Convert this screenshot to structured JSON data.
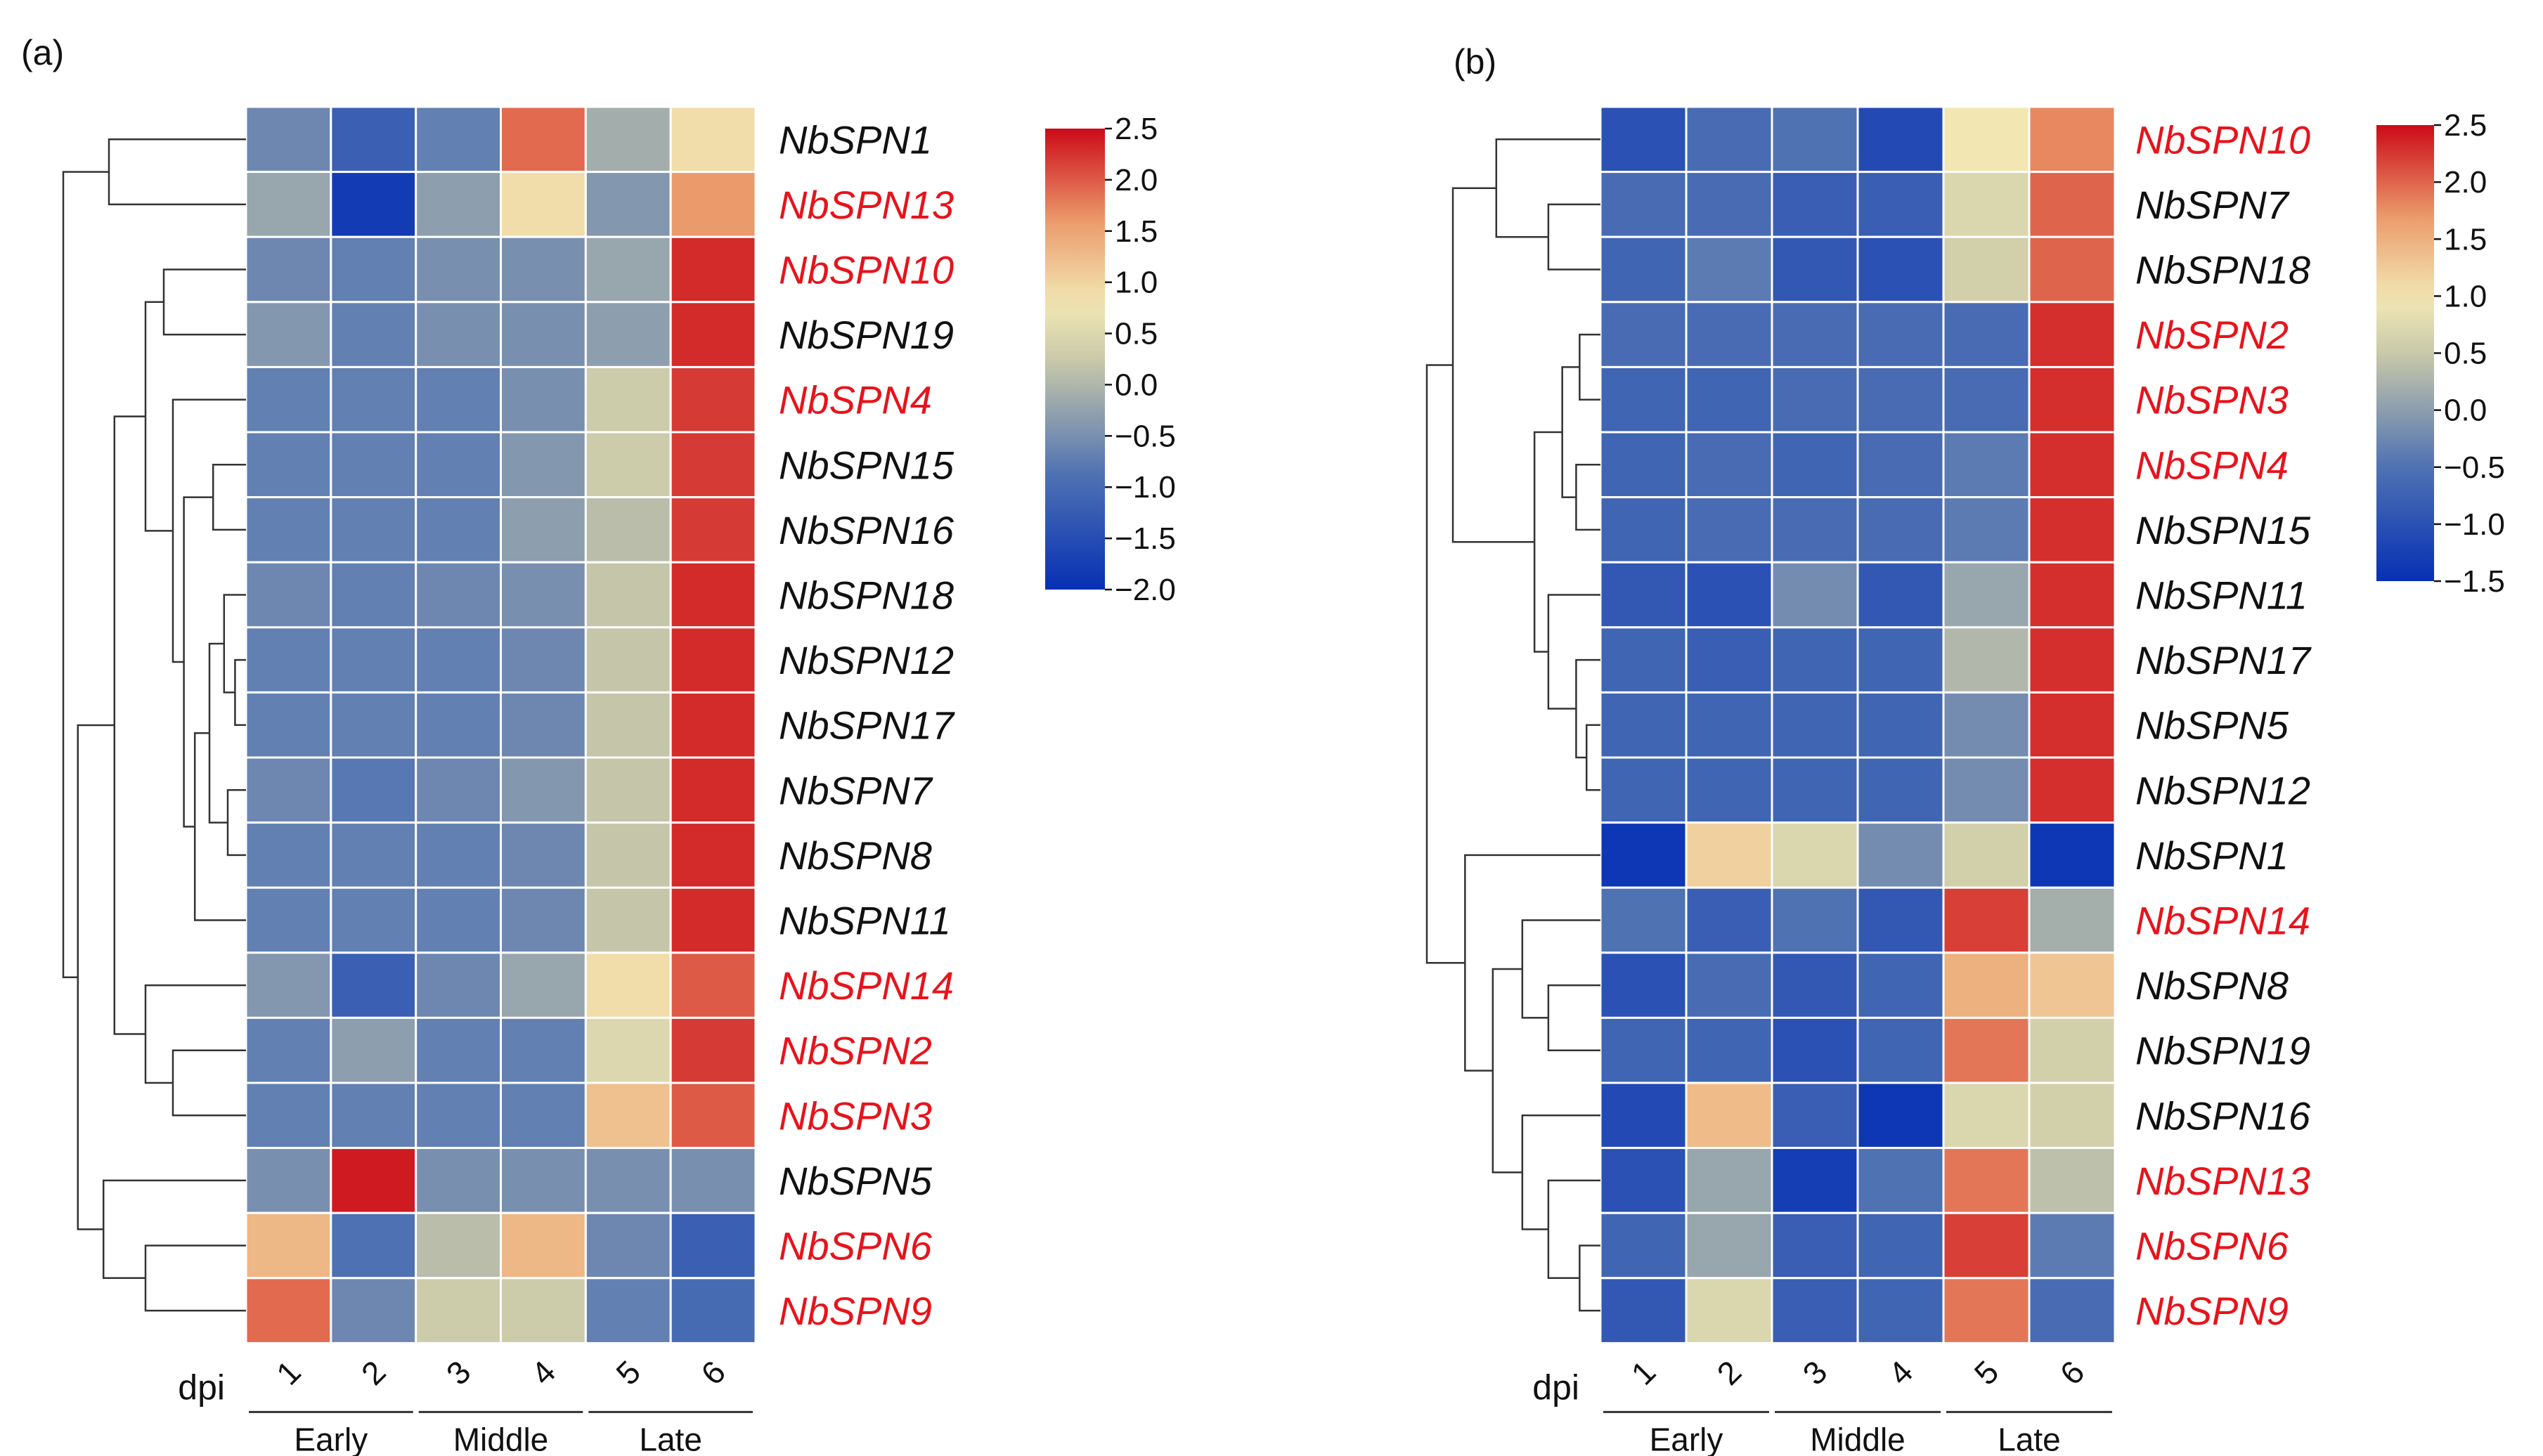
{
  "figure": {
    "background": "#ffffff",
    "highlight_color": "#e8131b",
    "normal_color": "#111111",
    "colormap": [
      {
        "t": 0.0,
        "color": "#0630b4"
      },
      {
        "t": 0.25,
        "color": "#4f72b3"
      },
      {
        "t": 0.5,
        "color": "#c9c9a9"
      },
      {
        "t": 0.62,
        "color": "#f2e8b4"
      },
      {
        "t": 0.8,
        "color": "#eb9a6b"
      },
      {
        "t": 1.0,
        "color": "#cc0a18"
      }
    ]
  },
  "chart_data": [
    {
      "type": "heatmap",
      "panel_label": "(a)",
      "columns": [
        "1",
        "2",
        "3",
        "4",
        "5",
        "6"
      ],
      "xlabel": "dpi",
      "groups": [
        {
          "name": "Early",
          "columns": [
            "1",
            "2"
          ]
        },
        {
          "name": "Middle",
          "columns": [
            "3",
            "4"
          ]
        },
        {
          "name": "Late",
          "columns": [
            "5",
            "6"
          ]
        }
      ],
      "rows": [
        "NbSPN1",
        "NbSPN13",
        "NbSPN10",
        "NbSPN19",
        "NbSPN4",
        "NbSPN15",
        "NbSPN16",
        "NbSPN18",
        "NbSPN12",
        "NbSPN17",
        "NbSPN7",
        "NbSPN8",
        "NbSPN11",
        "NbSPN14",
        "NbSPN2",
        "NbSPN3",
        "NbSPN5",
        "NbSPN6",
        "NbSPN9"
      ],
      "highlighted_rows": [
        "NbSPN13",
        "NbSPN10",
        "NbSPN4",
        "NbSPN14",
        "NbSPN2",
        "NbSPN3",
        "NbSPN6",
        "NbSPN9"
      ],
      "values": [
        [
          -0.6,
          -1.2,
          -0.7,
          1.9,
          -0.1,
          0.9
        ],
        [
          -0.2,
          -1.8,
          -0.3,
          0.9,
          -0.4,
          1.6
        ],
        [
          -0.6,
          -0.7,
          -0.5,
          -0.5,
          -0.2,
          2.3
        ],
        [
          -0.4,
          -0.7,
          -0.5,
          -0.5,
          -0.3,
          2.3
        ],
        [
          -0.7,
          -0.7,
          -0.7,
          -0.5,
          0.3,
          2.2
        ],
        [
          -0.7,
          -0.7,
          -0.7,
          -0.4,
          0.3,
          2.2
        ],
        [
          -0.7,
          -0.7,
          -0.7,
          -0.3,
          0.1,
          2.2
        ],
        [
          -0.6,
          -0.7,
          -0.6,
          -0.5,
          0.2,
          2.3
        ],
        [
          -0.7,
          -0.7,
          -0.7,
          -0.6,
          0.2,
          2.3
        ],
        [
          -0.7,
          -0.7,
          -0.7,
          -0.6,
          0.2,
          2.3
        ],
        [
          -0.6,
          -0.8,
          -0.6,
          -0.4,
          0.2,
          2.3
        ],
        [
          -0.7,
          -0.7,
          -0.7,
          -0.6,
          0.2,
          2.3
        ],
        [
          -0.7,
          -0.7,
          -0.7,
          -0.6,
          0.2,
          2.3
        ],
        [
          -0.4,
          -1.2,
          -0.6,
          -0.2,
          0.9,
          2.0
        ],
        [
          -0.7,
          -0.3,
          -0.7,
          -0.7,
          0.5,
          2.2
        ],
        [
          -0.7,
          -0.7,
          -0.7,
          -0.7,
          1.2,
          2.0
        ],
        [
          -0.5,
          2.4,
          -0.5,
          -0.5,
          -0.5,
          -0.5
        ],
        [
          1.3,
          -0.9,
          0.1,
          1.3,
          -0.6,
          -1.2
        ],
        [
          1.9,
          -0.6,
          0.3,
          0.3,
          -0.7,
          -1.0
        ]
      ],
      "colorbar": {
        "min": -2.0,
        "max": 2.5,
        "ticks": [
          "2.5",
          "2.0",
          "1.5",
          "1.0",
          "0.5",
          "0.0",
          "−0.5",
          "−1.0",
          "−1.5",
          "−2.0"
        ]
      }
    },
    {
      "type": "heatmap",
      "panel_label": "(b)",
      "columns": [
        "1",
        "2",
        "3",
        "4",
        "5",
        "6"
      ],
      "xlabel": "dpi",
      "groups": [
        {
          "name": "Early",
          "columns": [
            "1",
            "2"
          ]
        },
        {
          "name": "Middle",
          "columns": [
            "3",
            "4"
          ]
        },
        {
          "name": "Late",
          "columns": [
            "5",
            "6"
          ]
        }
      ],
      "rows": [
        "NbSPN10",
        "NbSPN7",
        "NbSPN18",
        "NbSPN2",
        "NbSPN3",
        "NbSPN4",
        "NbSPN15",
        "NbSPN11",
        "NbSPN17",
        "NbSPN5",
        "NbSPN12",
        "NbSPN1",
        "NbSPN14",
        "NbSPN8",
        "NbSPN19",
        "NbSPN16",
        "NbSPN13",
        "NbSPN6",
        "NbSPN9"
      ],
      "highlighted_rows": [
        "NbSPN10",
        "NbSPN2",
        "NbSPN3",
        "NbSPN4",
        "NbSPN14",
        "NbSPN13",
        "NbSPN6",
        "NbSPN9"
      ],
      "values": [
        [
          -1.0,
          -0.6,
          -0.5,
          -1.1,
          1.0,
          1.8
        ],
        [
          -0.6,
          -0.6,
          -0.8,
          -0.8,
          0.7,
          2.0
        ],
        [
          -0.7,
          -0.4,
          -0.9,
          -1.0,
          0.6,
          2.0
        ],
        [
          -0.6,
          -0.6,
          -0.6,
          -0.6,
          -0.6,
          2.3
        ],
        [
          -0.7,
          -0.7,
          -0.6,
          -0.6,
          -0.6,
          2.3
        ],
        [
          -0.7,
          -0.6,
          -0.7,
          -0.6,
          -0.4,
          2.3
        ],
        [
          -0.7,
          -0.6,
          -0.6,
          -0.6,
          -0.4,
          2.3
        ],
        [
          -0.9,
          -1.0,
          -0.2,
          -0.9,
          0.1,
          2.3
        ],
        [
          -0.7,
          -0.8,
          -0.7,
          -0.7,
          0.3,
          2.3
        ],
        [
          -0.7,
          -0.7,
          -0.7,
          -0.7,
          -0.2,
          2.3
        ],
        [
          -0.7,
          -0.7,
          -0.7,
          -0.7,
          -0.2,
          2.3
        ],
        [
          -1.4,
          1.2,
          0.7,
          -0.2,
          0.6,
          -1.4
        ],
        [
          -0.5,
          -0.8,
          -0.5,
          -0.9,
          2.2,
          0.2
        ],
        [
          -1.0,
          -0.6,
          -0.9,
          -0.7,
          1.5,
          1.3
        ],
        [
          -0.7,
          -0.7,
          -1.0,
          -0.7,
          1.9,
          0.6
        ],
        [
          -1.1,
          1.4,
          -0.8,
          -1.4,
          0.7,
          0.6
        ],
        [
          -1.0,
          0.1,
          -1.3,
          -0.5,
          1.9,
          0.4
        ],
        [
          -0.7,
          0.1,
          -0.8,
          -0.7,
          2.2,
          -0.4
        ],
        [
          -0.9,
          0.7,
          -0.8,
          -0.7,
          1.9,
          -0.6
        ]
      ],
      "colorbar": {
        "min": -1.5,
        "max": 2.5,
        "ticks": [
          "2.5",
          "2.0",
          "1.5",
          "1.0",
          "0.5",
          "0.0",
          "−0.5",
          "−1.0",
          "−1.5"
        ]
      }
    }
  ]
}
